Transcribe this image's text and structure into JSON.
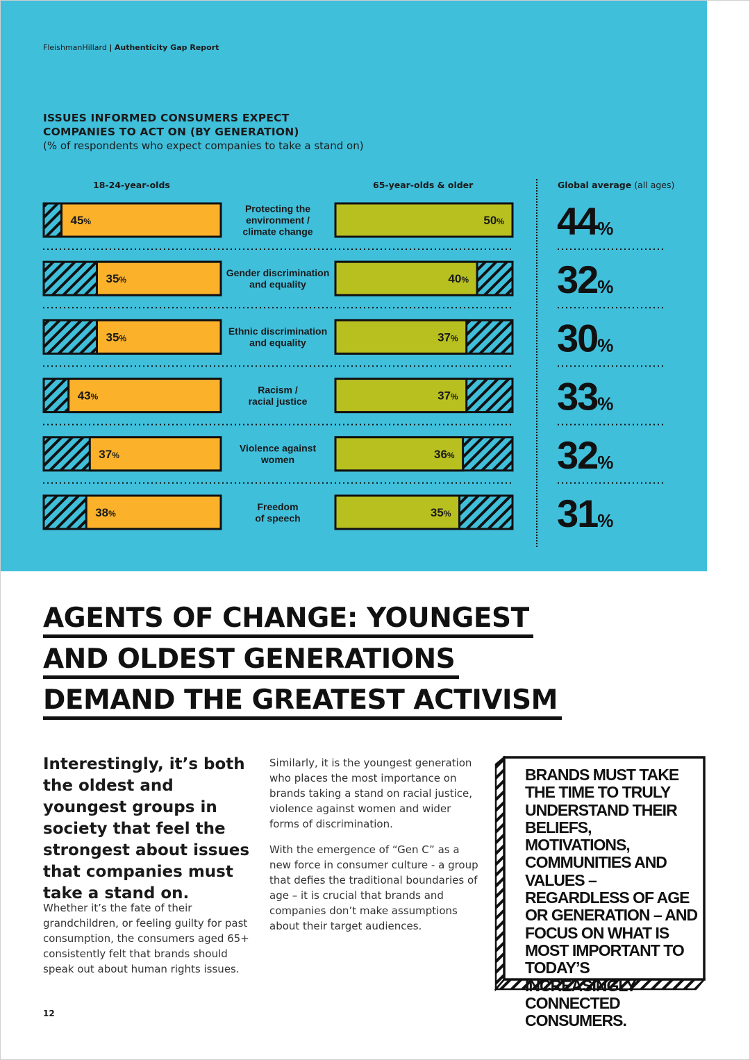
{
  "header": {
    "brand": "FleishmanHillard",
    "separator": "|",
    "report_title": "Authenticity Gap Report"
  },
  "chart_data": {
    "type": "bar",
    "title": "ISSUES INFORMED CONSUMERS EXPECT COMPANIES TO ACT ON (BY GENERATION)",
    "title_lines": [
      "ISSUES INFORMED CONSUMERS EXPECT",
      "COMPANIES TO ACT ON (BY GENERATION)"
    ],
    "subtitle": "(% of respondents who expect companies to take a stand on)",
    "categories": [
      "Protecting the environment / climate change",
      "Gender discrimination and equality",
      "Ethnic discrimination and equality",
      "Racism / racial justice",
      "Violence against women",
      "Freedom of speech"
    ],
    "category_lines": [
      [
        "Protecting the",
        "environment /",
        "climate change"
      ],
      [
        "Gender discrimination",
        "and equality"
      ],
      [
        "Ethnic discrimination",
        "and equality"
      ],
      [
        "Racism /",
        "racial justice"
      ],
      [
        "Violence against",
        "women"
      ],
      [
        "Freedom",
        "of speech"
      ]
    ],
    "series": [
      {
        "name": "18-24-year-olds",
        "color": "#fbb22a",
        "values": [
          45,
          35,
          35,
          43,
          37,
          38
        ]
      },
      {
        "name": "65-year-olds & older",
        "color": "#b8c020",
        "values": [
          50,
          40,
          37,
          37,
          36,
          35
        ]
      }
    ],
    "global_average": {
      "label": "Global average",
      "qualifier": "(all ages)",
      "values": [
        44,
        32,
        30,
        33,
        32,
        31
      ]
    },
    "unit": "%",
    "ylim": [
      0,
      50
    ]
  },
  "article": {
    "headline_lines": [
      "AGENTS OF CHANGE: YOUNGEST",
      "AND OLDEST GENERATIONS",
      "DEMAND THE GREATEST ACTIVISM"
    ],
    "lead": "Interestingly, it’s both the oldest and youngest groups in society that feel the strongest about issues that companies must take a stand on.",
    "body1": "Whether it’s the fate of their grandchildren, or feeling guilty for past consumption, the consumers aged 65+ consistently felt that brands should speak out about human rights issues.",
    "body2": "Similarly, it is the youngest generation who places the most importance on brands taking a stand on racial justice, violence against women and wider forms of discrimination.",
    "body3": "With the emergence of “Gen C” as a new force in consumer culture - a group that defies the traditional boundaries of age – it is crucial that brands and companies don’t make assumptions about their target audiences.",
    "callout": "BRANDS MUST TAKE THE TIME TO TRULY UNDERSTAND THEIR BELIEFS, MOTIVATIONS, COMMUNITIES AND VALUES – REGARDLESS OF AGE OR GENERATION – AND FOCUS ON WHAT IS MOST IMPORTANT TO TODAY’S INCREASINGLY CONNECTED CONSUMERS.",
    "page_number": "12"
  },
  "colors": {
    "band": "#40bfdb",
    "ink": "#111111"
  }
}
